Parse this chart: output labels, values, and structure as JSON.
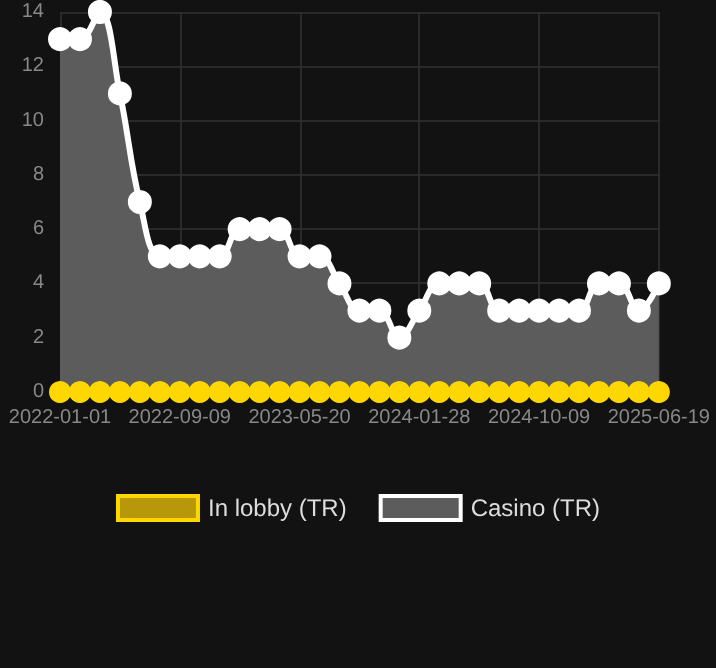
{
  "chart_data": {
    "type": "line",
    "categories": [
      "2022-01-01",
      null,
      null,
      null,
      null,
      null,
      "2022-09-09",
      null,
      null,
      null,
      null,
      null,
      "2023-05-20",
      null,
      null,
      null,
      null,
      null,
      "2024-01-28",
      null,
      null,
      null,
      null,
      null,
      "2024-10-09",
      null,
      null,
      null,
      null,
      null,
      "2025-06-19"
    ],
    "series": [
      {
        "name": "In lobby (TR)",
        "color": "#ffd700",
        "values": [
          0,
          0,
          0,
          0,
          0,
          0,
          0,
          0,
          0,
          0,
          0,
          0,
          0,
          0,
          0,
          0,
          0,
          0,
          0,
          0,
          0,
          0,
          0,
          0,
          0,
          0,
          0,
          0,
          0,
          0,
          0
        ]
      },
      {
        "name": "Casino (TR)",
        "type": "area",
        "color": "#ffffff",
        "values": [
          13,
          13,
          14,
          11,
          7,
          5,
          5,
          5,
          5,
          6,
          6,
          6,
          5,
          5,
          4,
          3,
          3,
          2,
          3,
          4,
          4,
          4,
          3,
          3,
          3,
          3,
          3,
          4,
          4,
          3,
          4
        ]
      }
    ],
    "ylim": [
      0,
      14
    ],
    "yticks": [
      0,
      2,
      4,
      6,
      8,
      10,
      12,
      14
    ],
    "grid": true,
    "legend": "bottom",
    "marker": "circle",
    "line_style": "solid"
  }
}
